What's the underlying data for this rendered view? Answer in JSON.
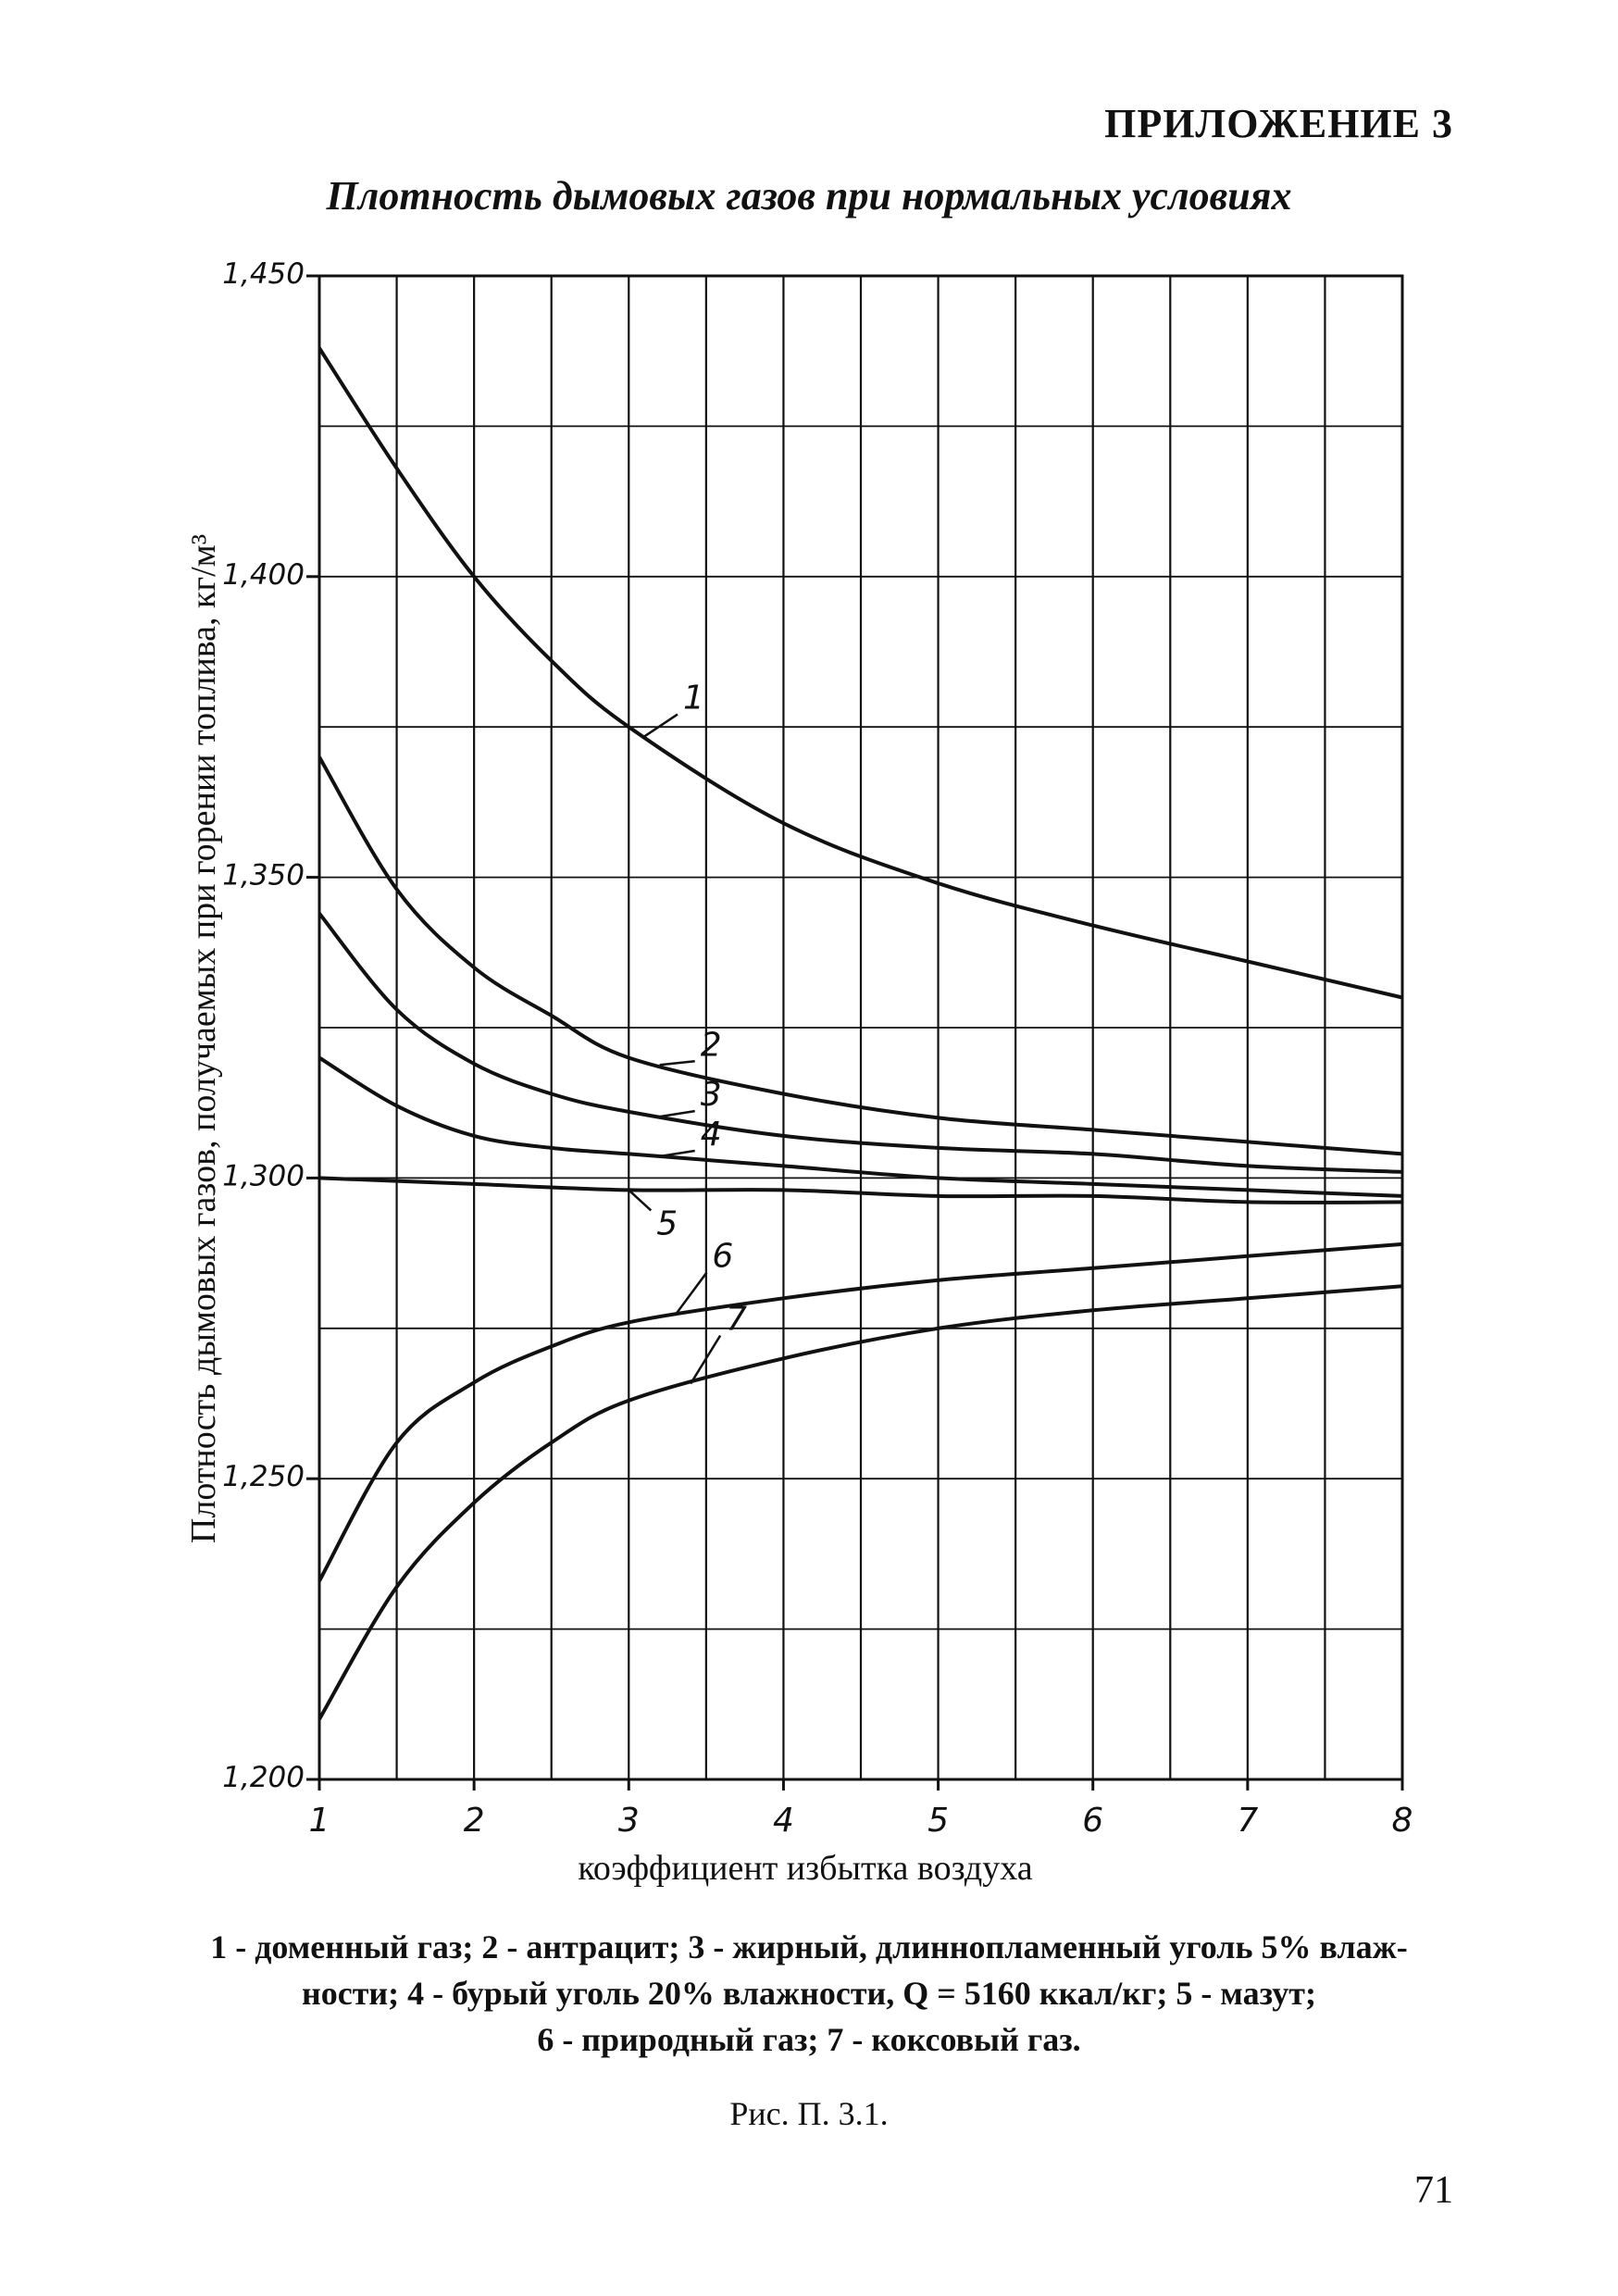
{
  "page": {
    "appendix_heading": "ПРИЛОЖЕНИЕ 3",
    "title": "Плотность дымовых газов при нормальных условиях",
    "caption_lines": [
      "1 - доменный газ; 2 - антрацит; 3 - жирный, длиннопламенный уголь 5% влаж-",
      "ности; 4 - бурый уголь 20% влажности, Q = 5160 ккал/кг;  5 - мазут;",
      "6 - природный газ;  7 - коксовый газ."
    ],
    "figure_label": "Рис. П. 3.1.",
    "page_number": "71"
  },
  "chart_data": {
    "type": "line",
    "title": "Плотность дымовых газов при нормальных условиях",
    "xlabel": "коэффициент избытка воздуха",
    "ylabel": "Плотность дымовых газов, получаемых при горении топлива, кг/м³",
    "xlim": [
      1,
      8
    ],
    "ylim": [
      1.2,
      1.45
    ],
    "x_ticks": [
      1,
      2,
      3,
      4,
      5,
      6,
      7,
      8
    ],
    "x_tick_labels": [
      "1",
      "2",
      "3",
      "4",
      "5",
      "6",
      "7",
      "8"
    ],
    "y_ticks": [
      1.2,
      1.25,
      1.3,
      1.35,
      1.4,
      1.45
    ],
    "y_tick_labels": [
      "1,200",
      "1,250",
      "1,300",
      "1,350",
      "1,400",
      "1,450"
    ],
    "grid": true,
    "series": [
      {
        "name": "1",
        "x": [
          1,
          1.5,
          2,
          2.5,
          3,
          4,
          5,
          6,
          7,
          8
        ],
        "y": [
          1.438,
          1.418,
          1.4,
          1.386,
          1.375,
          1.359,
          1.349,
          1.342,
          1.336,
          1.33
        ]
      },
      {
        "name": "2",
        "x": [
          1,
          1.5,
          2,
          2.5,
          3,
          4,
          5,
          6,
          7,
          8
        ],
        "y": [
          1.37,
          1.348,
          1.335,
          1.327,
          1.32,
          1.314,
          1.31,
          1.308,
          1.306,
          1.304
        ]
      },
      {
        "name": "3",
        "x": [
          1,
          1.5,
          2,
          2.5,
          3,
          4,
          5,
          6,
          7,
          8
        ],
        "y": [
          1.344,
          1.328,
          1.319,
          1.314,
          1.311,
          1.307,
          1.305,
          1.304,
          1.302,
          1.301
        ]
      },
      {
        "name": "4",
        "x": [
          1,
          1.5,
          2,
          2.5,
          3,
          4,
          5,
          6,
          7,
          8
        ],
        "y": [
          1.32,
          1.312,
          1.307,
          1.305,
          1.304,
          1.302,
          1.3,
          1.299,
          1.298,
          1.297
        ]
      },
      {
        "name": "5",
        "x": [
          1,
          2,
          3,
          4,
          5,
          6,
          7,
          8
        ],
        "y": [
          1.3,
          1.299,
          1.298,
          1.298,
          1.297,
          1.297,
          1.296,
          1.296
        ]
      },
      {
        "name": "6",
        "x": [
          1,
          1.5,
          2,
          2.5,
          3,
          4,
          5,
          6,
          7,
          8
        ],
        "y": [
          1.233,
          1.256,
          1.266,
          1.272,
          1.276,
          1.28,
          1.283,
          1.285,
          1.287,
          1.289
        ]
      },
      {
        "name": "7",
        "x": [
          1,
          1.5,
          2,
          2.5,
          3,
          4,
          5,
          6,
          7,
          8
        ],
        "y": [
          1.21,
          1.232,
          1.246,
          1.256,
          1.263,
          1.27,
          1.275,
          1.278,
          1.28,
          1.282
        ]
      }
    ]
  }
}
